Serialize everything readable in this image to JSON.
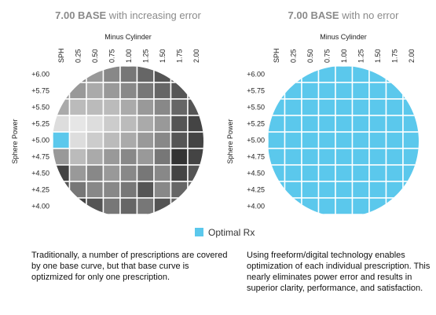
{
  "panels": [
    {
      "title_bold": "7.00 BASE",
      "title_rest": " with increasing error",
      "x_title": "Minus Cylinder",
      "y_title": "Sphere Power",
      "columns": [
        "SPH",
        "0.25",
        "0.50",
        "0.75",
        "1.00",
        "1.25",
        "1.50",
        "1.75",
        "2.00"
      ],
      "rows": [
        "+6.00",
        "+5.75",
        "+5.50",
        "+5.25",
        "+5.00",
        "+4.75",
        "+4.50",
        "+4.25",
        "+4.00"
      ],
      "cell_colors": [
        [
          "#777",
          "#888",
          "#999",
          "#888",
          "#777",
          "#666",
          "#555",
          "#666",
          "#777"
        ],
        [
          "#999",
          "#999",
          "#aaa",
          "#999",
          "#888",
          "#777",
          "#666",
          "#555",
          "#666"
        ],
        [
          "#aaa",
          "#bbb",
          "#bbb",
          "#bbb",
          "#aaa",
          "#999",
          "#888",
          "#666",
          "#555"
        ],
        [
          "#ddd",
          "#e6e6e6",
          "#ddd",
          "#ccc",
          "#bbb",
          "#aaa",
          "#999",
          "#555",
          "#444"
        ],
        [
          "#5bc8ec",
          "#ddd",
          "#ccc",
          "#bbb",
          "#aaa",
          "#999",
          "#888",
          "#555",
          "#444"
        ],
        [
          "#999",
          "#bbb",
          "#aaa",
          "#999",
          "#888",
          "#999",
          "#777",
          "#333",
          "#444"
        ],
        [
          "#444",
          "#999",
          "#888",
          "#999",
          "#888",
          "#777",
          "#888",
          "#444",
          "#555"
        ],
        [
          "#555",
          "#777",
          "#888",
          "#888",
          "#777",
          "#555",
          "#888",
          "#666",
          "#666"
        ],
        [
          "#444",
          "#444",
          "#555",
          "#777",
          "#666",
          "#777",
          "#555",
          "#666",
          "#777"
        ]
      ],
      "caption": "Traditionally, a number of prescriptions are covered by one base curve, but that base curve is optizmized for only one prescription."
    },
    {
      "title_bold": "7.00 BASE",
      "title_rest": " with no error",
      "x_title": "Minus Cylinder",
      "y_title": "Sphere Power",
      "columns": [
        "SPH",
        "0.25",
        "0.50",
        "0.75",
        "1.00",
        "1.25",
        "1.50",
        "1.75",
        "2.00"
      ],
      "rows": [
        "+6.00",
        "+5.75",
        "+5.50",
        "+5.25",
        "+5.00",
        "+4.75",
        "+4.50",
        "+4.25",
        "+4.00"
      ],
      "fill_color": "#5bc8ec",
      "caption": "Using freeform/digital technology enables optimization of each individual prescription. This nearly eliminates power error and results in superior clarity, performance, and satisfaction."
    }
  ],
  "legend": {
    "label": "Optimal Rx",
    "color": "#5bc8ec"
  }
}
